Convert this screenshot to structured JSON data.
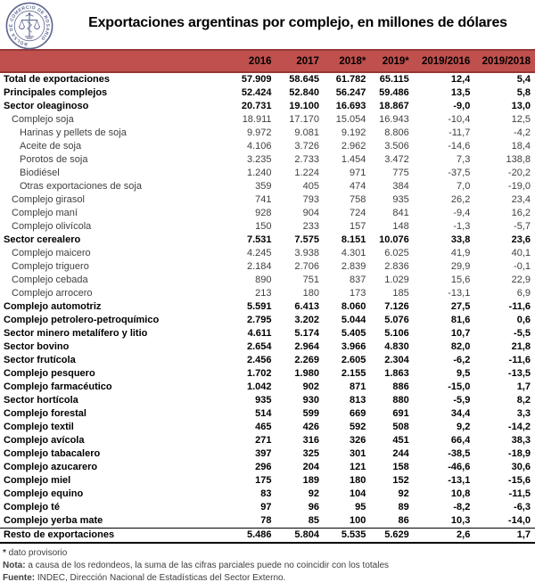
{
  "header": {
    "title": "Exportaciones argentinas por complejo, en millones de dólares",
    "logo_seal_text": "BOLSA DE COMERCIO DE ROSARIO"
  },
  "colors": {
    "band": "#C0504D",
    "band_border": "#953735",
    "logo": "#5B658D"
  },
  "chart_data": {
    "type": "table",
    "title": "Exportaciones argentinas por complejo, en millones de dólares",
    "unit": "millones de dólares",
    "columns": [
      "2016",
      "2017",
      "2018*",
      "2019*",
      "2019/2016",
      "2019/2018"
    ],
    "rows": [
      {
        "label": "Total de exportaciones",
        "indent": 0,
        "bold": true,
        "values": [
          "57.909",
          "58.645",
          "61.782",
          "65.115",
          "12,4",
          "5,4"
        ]
      },
      {
        "label": "Principales complejos",
        "indent": 0,
        "bold": true,
        "values": [
          "52.424",
          "52.840",
          "56.247",
          "59.486",
          "13,5",
          "5,8"
        ]
      },
      {
        "label": "Sector oleaginoso",
        "indent": 0,
        "bold": true,
        "values": [
          "20.731",
          "19.100",
          "16.693",
          "18.867",
          "-9,0",
          "13,0"
        ]
      },
      {
        "label": "Complejo soja",
        "indent": 1,
        "bold": false,
        "values": [
          "18.911",
          "17.170",
          "15.054",
          "16.943",
          "-10,4",
          "12,5"
        ]
      },
      {
        "label": "Harinas y pellets de soja",
        "indent": 2,
        "bold": false,
        "values": [
          "9.972",
          "9.081",
          "9.192",
          "8.806",
          "-11,7",
          "-4,2"
        ]
      },
      {
        "label": "Aceite de soja",
        "indent": 2,
        "bold": false,
        "values": [
          "4.106",
          "3.726",
          "2.962",
          "3.506",
          "-14,6",
          "18,4"
        ]
      },
      {
        "label": "Porotos de soja",
        "indent": 2,
        "bold": false,
        "values": [
          "3.235",
          "2.733",
          "1.454",
          "3.472",
          "7,3",
          "138,8"
        ]
      },
      {
        "label": "Biodiésel",
        "indent": 2,
        "bold": false,
        "values": [
          "1.240",
          "1.224",
          "971",
          "775",
          "-37,5",
          "-20,2"
        ]
      },
      {
        "label": "Otras exportaciones de soja",
        "indent": 2,
        "bold": false,
        "values": [
          "359",
          "405",
          "474",
          "384",
          "7,0",
          "-19,0"
        ]
      },
      {
        "label": "Complejo girasol",
        "indent": 1,
        "bold": false,
        "values": [
          "741",
          "793",
          "758",
          "935",
          "26,2",
          "23,4"
        ]
      },
      {
        "label": "Complejo maní",
        "indent": 1,
        "bold": false,
        "values": [
          "928",
          "904",
          "724",
          "841",
          "-9,4",
          "16,2"
        ]
      },
      {
        "label": "Complejo olivícola",
        "indent": 1,
        "bold": false,
        "values": [
          "150",
          "233",
          "157",
          "148",
          "-1,3",
          "-5,7"
        ]
      },
      {
        "label": "Sector cerealero",
        "indent": 0,
        "bold": true,
        "values": [
          "7.531",
          "7.575",
          "8.151",
          "10.076",
          "33,8",
          "23,6"
        ]
      },
      {
        "label": "Complejo maicero",
        "indent": 1,
        "bold": false,
        "values": [
          "4.245",
          "3.938",
          "4.301",
          "6.025",
          "41,9",
          "40,1"
        ]
      },
      {
        "label": "Complejo triguero",
        "indent": 1,
        "bold": false,
        "values": [
          "2.184",
          "2.706",
          "2.839",
          "2.836",
          "29,9",
          "-0,1"
        ]
      },
      {
        "label": "Complejo cebada",
        "indent": 1,
        "bold": false,
        "values": [
          "890",
          "751",
          "837",
          "1.029",
          "15,6",
          "22,9"
        ]
      },
      {
        "label": "Complejo arrocero",
        "indent": 1,
        "bold": false,
        "values": [
          "213",
          "180",
          "173",
          "185",
          "-13,1",
          "6,9"
        ]
      },
      {
        "label": "Complejo automotriz",
        "indent": 0,
        "bold": true,
        "values": [
          "5.591",
          "6.413",
          "8.060",
          "7.126",
          "27,5",
          "-11,6"
        ]
      },
      {
        "label": "Complejo petrolero-petroquímico",
        "indent": 0,
        "bold": true,
        "values": [
          "2.795",
          "3.202",
          "5.044",
          "5.076",
          "81,6",
          "0,6"
        ]
      },
      {
        "label": "Sector minero metalífero y litio",
        "indent": 0,
        "bold": true,
        "values": [
          "4.611",
          "5.174",
          "5.405",
          "5.106",
          "10,7",
          "-5,5"
        ]
      },
      {
        "label": "Sector bovino",
        "indent": 0,
        "bold": true,
        "values": [
          "2.654",
          "2.964",
          "3.966",
          "4.830",
          "82,0",
          "21,8"
        ]
      },
      {
        "label": "Sector frutícola",
        "indent": 0,
        "bold": true,
        "values": [
          "2.456",
          "2.269",
          "2.605",
          "2.304",
          "-6,2",
          "-11,6"
        ]
      },
      {
        "label": "Complejo pesquero",
        "indent": 0,
        "bold": true,
        "values": [
          "1.702",
          "1.980",
          "2.155",
          "1.863",
          "9,5",
          "-13,5"
        ]
      },
      {
        "label": "Complejo farmacéutico",
        "indent": 0,
        "bold": true,
        "values": [
          "1.042",
          "902",
          "871",
          "886",
          "-15,0",
          "1,7"
        ]
      },
      {
        "label": "Sector hortícola",
        "indent": 0,
        "bold": true,
        "values": [
          "935",
          "930",
          "813",
          "880",
          "-5,9",
          "8,2"
        ]
      },
      {
        "label": "Complejo forestal",
        "indent": 0,
        "bold": true,
        "values": [
          "514",
          "599",
          "669",
          "691",
          "34,4",
          "3,3"
        ]
      },
      {
        "label": "Complejo textil",
        "indent": 0,
        "bold": true,
        "values": [
          "465",
          "426",
          "592",
          "508",
          "9,2",
          "-14,2"
        ]
      },
      {
        "label": "Complejo avícola",
        "indent": 0,
        "bold": true,
        "values": [
          "271",
          "316",
          "326",
          "451",
          "66,4",
          "38,3"
        ]
      },
      {
        "label": "Complejo tabacalero",
        "indent": 0,
        "bold": true,
        "values": [
          "397",
          "325",
          "301",
          "244",
          "-38,5",
          "-18,9"
        ]
      },
      {
        "label": "Complejo azucarero",
        "indent": 0,
        "bold": true,
        "values": [
          "296",
          "204",
          "121",
          "158",
          "-46,6",
          "30,6"
        ]
      },
      {
        "label": "Complejo miel",
        "indent": 0,
        "bold": true,
        "values": [
          "175",
          "189",
          "180",
          "152",
          "-13,1",
          "-15,6"
        ]
      },
      {
        "label": "Complejo equino",
        "indent": 0,
        "bold": true,
        "values": [
          "83",
          "92",
          "104",
          "92",
          "10,8",
          "-11,5"
        ]
      },
      {
        "label": "Complejo té",
        "indent": 0,
        "bold": true,
        "values": [
          "97",
          "96",
          "95",
          "89",
          "-8,2",
          "-6,3"
        ]
      },
      {
        "label": "Complejo yerba mate",
        "indent": 0,
        "bold": true,
        "values": [
          "78",
          "85",
          "100",
          "86",
          "10,3",
          "-14,0"
        ]
      },
      {
        "label": "Resto de exportaciones",
        "indent": 0,
        "bold": true,
        "values": [
          "5.486",
          "5.804",
          "5.535",
          "5.629",
          "2,6",
          "1,7"
        ]
      }
    ]
  },
  "footer": {
    "provisional": {
      "prefix": "*",
      "text": " dato provisorio"
    },
    "nota": {
      "prefix": "Nota:",
      "text": " a causa de los redondeos, la suma de las cifras parciales puede no coincidir con los totales"
    },
    "fuente": {
      "prefix": "Fuente:",
      "text": " INDEC, Dirección Nacional de Estadísticas del Sector Externo."
    }
  }
}
